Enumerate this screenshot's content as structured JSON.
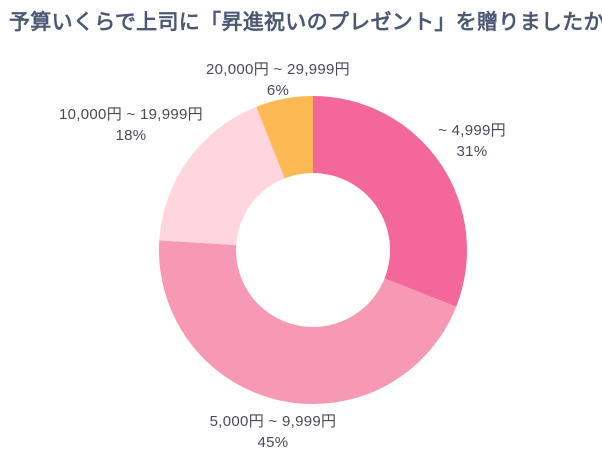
{
  "page": {
    "title": "予算いくらで上司に「昇進祝いのプレゼント」を贈りましたか？",
    "background_color": "#FFFFFF",
    "title_color": "#4D5874",
    "label_text_color": "#454B57"
  },
  "chart_data": {
    "type": "pie",
    "subtype": "donut",
    "title": "予算いくらで上司に「昇進祝いのプレゼント」を贈りましたか？",
    "unit": "%",
    "direction": "clockwise",
    "start_angle_deg": 0,
    "inner_radius_ratio": 0.5,
    "grid": false,
    "legend_position": "labels-around-chart",
    "categories": [
      "~ 4,999円",
      "5,000円 ~ 9,999円",
      "10,000円 ~ 19,999円",
      "20,000円 ~ 29,999円"
    ],
    "values": [
      31,
      45,
      18,
      6
    ],
    "colors": [
      "#F4679A",
      "#F799B5",
      "#FFD6E0",
      "#FDBA54"
    ],
    "segments": [
      {
        "label": "~ 4,999円",
        "percent_label": "31%",
        "value": 31,
        "color": "#F4679A",
        "label_position": "right"
      },
      {
        "label": "5,000円 ~ 9,999円",
        "percent_label": "45%",
        "value": 45,
        "color": "#F799B5",
        "label_position": "bottom"
      },
      {
        "label": "10,000円 ~ 19,999円",
        "percent_label": "18%",
        "value": 18,
        "color": "#FFD6E0",
        "label_position": "left"
      },
      {
        "label": "20,000円 ~ 29,999円",
        "percent_label": "6%",
        "value": 6,
        "color": "#FDBA54",
        "label_position": "top"
      }
    ]
  }
}
